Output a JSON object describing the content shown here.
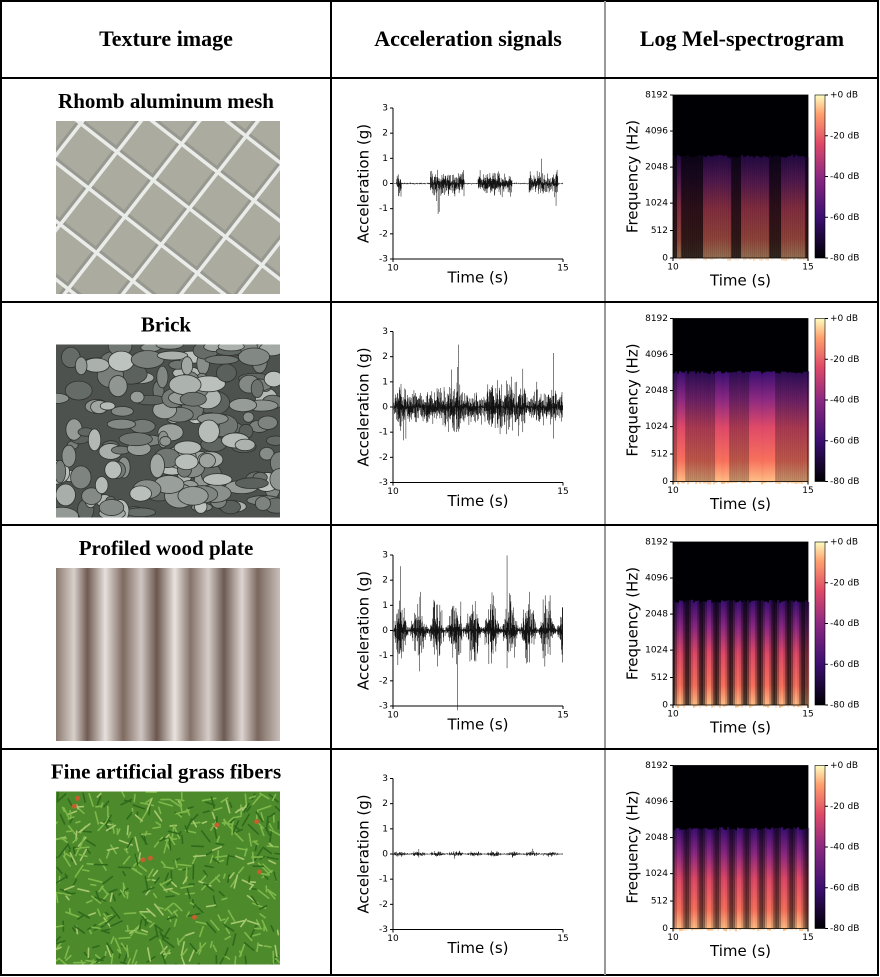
{
  "table": {
    "headers": [
      "Texture image",
      "Acceleration signals",
      "Log Mel-spectrogram"
    ],
    "rows": [
      {
        "texture": "Rhomb aluminum mesh"
      },
      {
        "texture": "Brick"
      },
      {
        "texture": "Profiled wood plate"
      },
      {
        "texture": "Fine artificial grass fibers"
      }
    ],
    "signal_axes": {
      "ylabel": "Acceleration (g)",
      "xlabel": "Time (s)",
      "ylim": [
        -3,
        3
      ],
      "yticks": [
        3,
        2,
        1,
        0,
        -1,
        -2,
        -3
      ],
      "xlim": [
        10,
        15
      ],
      "xticks": [
        10,
        15
      ]
    },
    "spectrogram_axes": {
      "ylabel": "Frequency (Hz)",
      "xlabel": "Time (s)",
      "ylim": [
        0,
        8192
      ],
      "yticks": [
        8192,
        4096,
        2048,
        1024,
        512,
        0
      ],
      "xlim": [
        10,
        15
      ],
      "xticks": [
        10,
        15
      ],
      "clim": [
        -80,
        0
      ],
      "cticks": [
        {
          "value": 0,
          "label": "+0 dB"
        },
        {
          "value": -20,
          "label": "-20 dB"
        },
        {
          "value": -40,
          "label": "-40 dB"
        },
        {
          "value": -60,
          "label": "-60 dB"
        },
        {
          "value": -80,
          "label": "-80 dB"
        }
      ]
    }
  }
}
